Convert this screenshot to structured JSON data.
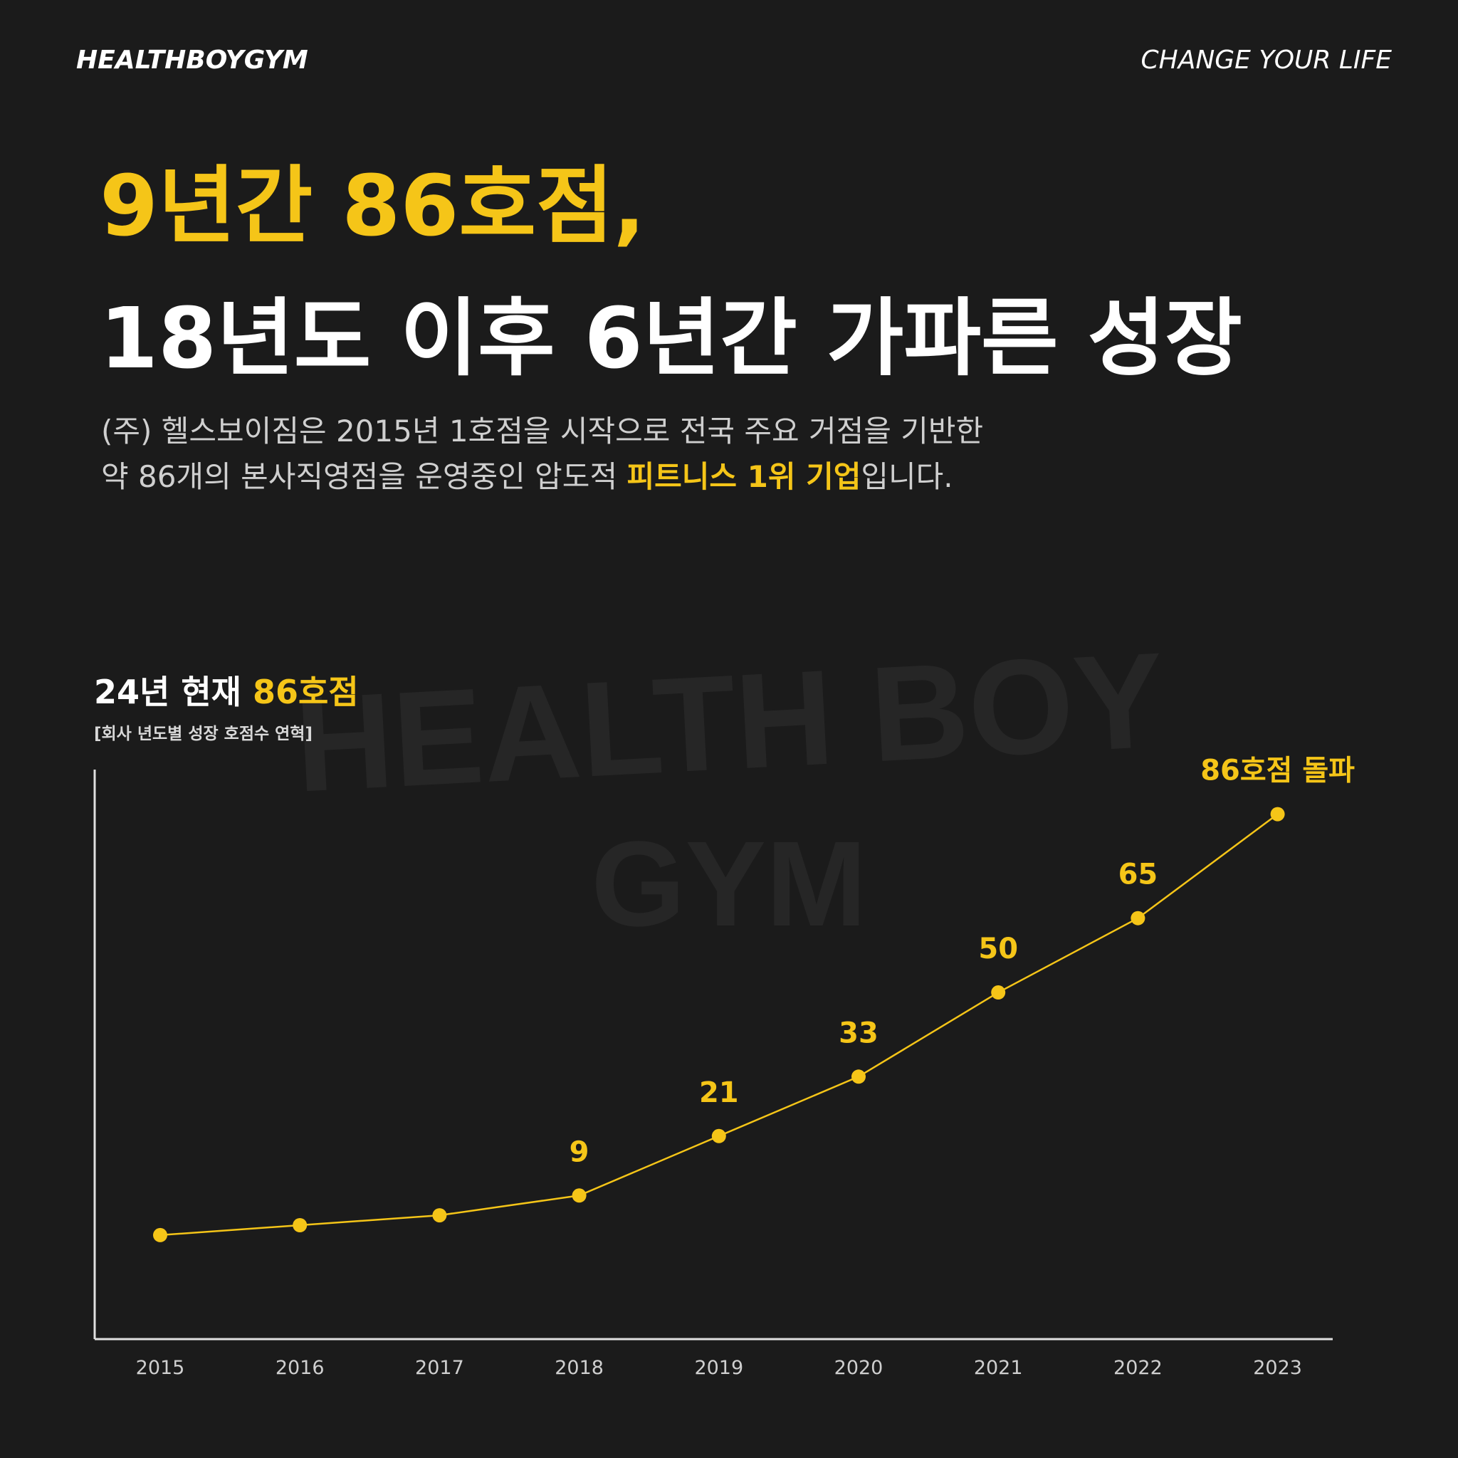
{
  "header": {
    "brand": "HEALTHBOYGYM",
    "slogan": "CHANGE YOUR LIFE"
  },
  "headline": {
    "line1": "9년간 86호점,",
    "line2": "18년도 이후 6년간 가파른 성장"
  },
  "description": {
    "line1": "(주) 헬스보이짐은 2015년 1호점을 시작으로 전국 주요 거점을 기반한",
    "line2_before": "약 86개의 본사직영점을 운영중인 압도적 ",
    "line2_highlight": "피트니스 1위 기업",
    "line2_after": "입니다."
  },
  "watermark": {
    "line1": "HEALTH BOY",
    "line2": "GYM"
  },
  "chart_data": {
    "type": "line",
    "title_prefix": "24년 현재 ",
    "title_highlight": "86호점",
    "subtitle": "[회사 년도별 성장 호점수 연혁]",
    "categories": [
      "2015",
      "2016",
      "2017",
      "2018",
      "2019",
      "2020",
      "2021",
      "2022",
      "2023"
    ],
    "series": [
      {
        "name": "호점수",
        "color": "#f5c518",
        "values": [
          1,
          3,
          5,
          9,
          21,
          33,
          50,
          65,
          86
        ],
        "value_labels": [
          null,
          null,
          null,
          "9",
          "21",
          "33",
          "50",
          "65",
          "86호점 돌파"
        ]
      }
    ],
    "ylim": [
      -20,
      95
    ]
  }
}
